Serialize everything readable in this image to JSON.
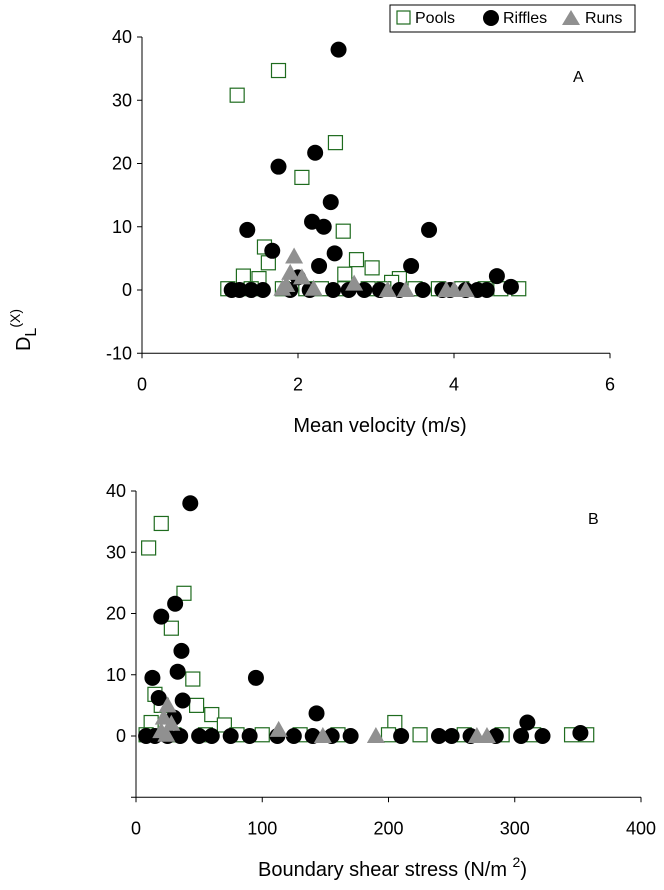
{
  "legend": {
    "entries": [
      {
        "label": "Pools",
        "marker": "square-open",
        "color": "#1e6b1e"
      },
      {
        "label": "Riffles",
        "marker": "circle",
        "color": "#000000"
      },
      {
        "label": "Runs",
        "marker": "triangle",
        "color": "#909090"
      }
    ],
    "placement": "top-right"
  },
  "y_label": {
    "main": "D",
    "sub": "L",
    "sup": "(X)"
  },
  "chart_data": [
    {
      "type": "scatter",
      "panel_label": "A",
      "xlabel": "Mean velocity (m/s)",
      "xlim": [
        0,
        6
      ],
      "ylim": [
        -10,
        40
      ],
      "xticks": [
        "0",
        "2",
        "4",
        "6"
      ],
      "yticks": [
        "-10",
        "0",
        "10",
        "20",
        "30",
        "40"
      ],
      "grid": false,
      "series": [
        {
          "name": "Pools",
          "points": [
            [
              1.22,
              30.8
            ],
            [
              1.75,
              34.7
            ],
            [
              2.05,
              17.8
            ],
            [
              2.48,
              23.3
            ],
            [
              2.58,
              9.3
            ],
            [
              1.57,
              6.8
            ],
            [
              1.62,
              4.3
            ],
            [
              2.75,
              4.8
            ],
            [
              2.95,
              3.5
            ],
            [
              1.3,
              2.2
            ],
            [
              1.5,
              1.8
            ],
            [
              2.6,
              2.5
            ],
            [
              3.3,
              1.8
            ],
            [
              3.2,
              1.2
            ],
            [
              1.1,
              0.2
            ],
            [
              1.4,
              0.2
            ],
            [
              1.8,
              0.2
            ],
            [
              2.1,
              0.2
            ],
            [
              2.3,
              0.2
            ],
            [
              2.6,
              0.2
            ],
            [
              2.9,
              0.2
            ],
            [
              3.1,
              0.2
            ],
            [
              3.5,
              0.2
            ],
            [
              3.8,
              0.2
            ],
            [
              4.1,
              0.2
            ],
            [
              4.4,
              0.2
            ],
            [
              4.6,
              0.2
            ],
            [
              4.83,
              0.2
            ]
          ]
        },
        {
          "name": "Riffles",
          "points": [
            [
              2.52,
              38.0
            ],
            [
              1.75,
              19.5
            ],
            [
              2.22,
              21.7
            ],
            [
              2.42,
              13.9
            ],
            [
              2.18,
              10.8
            ],
            [
              2.33,
              10.0
            ],
            [
              1.35,
              9.5
            ],
            [
              3.68,
              9.5
            ],
            [
              1.67,
              6.2
            ],
            [
              2.47,
              5.8
            ],
            [
              2.27,
              3.8
            ],
            [
              3.45,
              3.8
            ],
            [
              4.55,
              2.2
            ],
            [
              4.73,
              0.5
            ],
            [
              2.0,
              2.0
            ],
            [
              1.15,
              0.0
            ],
            [
              1.25,
              0.0
            ],
            [
              1.4,
              0.0
            ],
            [
              1.55,
              0.0
            ],
            [
              1.9,
              0.0
            ],
            [
              2.15,
              0.0
            ],
            [
              2.45,
              0.0
            ],
            [
              2.65,
              0.0
            ],
            [
              2.85,
              0.0
            ],
            [
              3.05,
              0.0
            ],
            [
              3.3,
              0.0
            ],
            [
              3.6,
              0.0
            ],
            [
              3.85,
              0.0
            ],
            [
              3.95,
              0.0
            ],
            [
              4.15,
              0.0
            ],
            [
              4.3,
              0.0
            ],
            [
              4.42,
              0.0
            ]
          ]
        },
        {
          "name": "Runs",
          "points": [
            [
              1.95,
              5.3
            ],
            [
              1.9,
              2.7
            ],
            [
              2.05,
              2.0
            ],
            [
              1.85,
              0.8
            ],
            [
              2.72,
              1.0
            ],
            [
              1.8,
              0.2
            ],
            [
              2.2,
              0.2
            ],
            [
              3.15,
              0.0
            ],
            [
              3.38,
              0.0
            ],
            [
              3.9,
              0.0
            ],
            [
              4.0,
              0.0
            ],
            [
              4.15,
              0.0
            ]
          ]
        }
      ]
    },
    {
      "type": "scatter",
      "panel_label": "B",
      "xlabel": "Boundary shear stress (N/m 2)",
      "xlabel_parts": {
        "main": "Boundary shear stress (N/m ",
        "sup": "2",
        "close": ")"
      },
      "xlim": [
        0,
        400
      ],
      "ylim": [
        -10,
        40
      ],
      "xticks": [
        "0",
        "100",
        "200",
        "300",
        "400"
      ],
      "yticks": [
        "",
        "0",
        "10",
        "20",
        "30",
        "40"
      ],
      "grid": false,
      "series": [
        {
          "name": "Pools",
          "points": [
            [
              10,
              30.7
            ],
            [
              20,
              34.7
            ],
            [
              28,
              17.6
            ],
            [
              38,
              23.3
            ],
            [
              45,
              9.3
            ],
            [
              15,
              6.8
            ],
            [
              20,
              5.0
            ],
            [
              48,
              5.0
            ],
            [
              60,
              3.5
            ],
            [
              12,
              2.2
            ],
            [
              70,
              1.8
            ],
            [
              205,
              2.2
            ],
            [
              8,
              0.2
            ],
            [
              30,
              0.2
            ],
            [
              55,
              0.2
            ],
            [
              80,
              0.2
            ],
            [
              100,
              0.2
            ],
            [
              130,
              0.2
            ],
            [
              160,
              0.2
            ],
            [
              200,
              0.2
            ],
            [
              225,
              0.2
            ],
            [
              260,
              0.2
            ],
            [
              290,
              0.2
            ],
            [
              315,
              0.2
            ],
            [
              345,
              0.2
            ],
            [
              357,
              0.2
            ]
          ]
        },
        {
          "name": "Riffles",
          "points": [
            [
              43,
              38.0
            ],
            [
              20,
              19.5
            ],
            [
              31,
              21.6
            ],
            [
              36,
              13.9
            ],
            [
              33,
              10.5
            ],
            [
              13,
              9.5
            ],
            [
              95,
              9.5
            ],
            [
              18,
              6.2
            ],
            [
              37,
              5.8
            ],
            [
              30,
              3.0
            ],
            [
              143,
              3.7
            ],
            [
              310,
              2.2
            ],
            [
              352,
              0.5
            ],
            [
              8,
              0.0
            ],
            [
              15,
              0.0
            ],
            [
              25,
              0.0
            ],
            [
              35,
              0.0
            ],
            [
              50,
              0.0
            ],
            [
              60,
              0.0
            ],
            [
              75,
              0.0
            ],
            [
              90,
              0.0
            ],
            [
              112,
              0.0
            ],
            [
              125,
              0.0
            ],
            [
              140,
              0.0
            ],
            [
              155,
              0.0
            ],
            [
              170,
              0.0
            ],
            [
              210,
              0.0
            ],
            [
              240,
              0.0
            ],
            [
              250,
              0.0
            ],
            [
              265,
              0.0
            ],
            [
              285,
              0.0
            ],
            [
              305,
              0.0
            ],
            [
              322,
              0.0
            ]
          ]
        },
        {
          "name": "Runs",
          "points": [
            [
              25,
              5.0
            ],
            [
              22,
              3.0
            ],
            [
              28,
              2.0
            ],
            [
              20,
              0.8
            ],
            [
              113,
              1.0
            ],
            [
              24,
              0.2
            ],
            [
              148,
              0.0
            ],
            [
              190,
              0.0
            ],
            [
              270,
              0.0
            ],
            [
              278,
              0.0
            ]
          ]
        }
      ]
    }
  ]
}
